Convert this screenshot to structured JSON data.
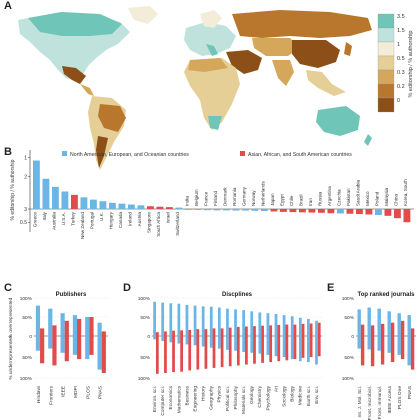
{
  "panels": {
    "a": {
      "letter": "A"
    },
    "b": {
      "letter": "B"
    },
    "c": {
      "letter": "C"
    },
    "d": {
      "letter": "D"
    },
    "e": {
      "letter": "E"
    }
  },
  "map_legend": {
    "title": "% editorship / % authorship",
    "ticks": [
      "3.5",
      "1.5",
      "1",
      "0.5",
      "0.3",
      "0.2",
      "0"
    ],
    "colors": [
      "#6fc5b8",
      "#bfe3dc",
      "#f3ecd8",
      "#e6cf96",
      "#d5a75a",
      "#b8772c",
      "#8b4f17"
    ]
  },
  "colors": {
    "blue": "#6cb6e6",
    "red": "#e24b4b",
    "ocean": "#ffffff"
  },
  "legend_b": {
    "blue": "North American, European, and Oceanian countries",
    "red": "Asian, African, and South American countries"
  },
  "axis_labels": {
    "b_y": "% editorship / % authorship",
    "cde_y_over": "% overrepresented",
    "cde_y_under": "% underrepresented"
  },
  "chart_data": [
    {
      "panel": "B",
      "type": "bar",
      "title": "",
      "ylabel": "% editorship / % authorship",
      "yscale": "log",
      "ylim": [
        0.3,
        3.5
      ],
      "ticks": [
        "1",
        "2",
        "3",
        "0.5"
      ],
      "categories": [
        "Greece",
        "Italy",
        "Australia",
        "U.S.A.",
        "Turkey",
        "New Zealand",
        "Portugal",
        "U.K.",
        "Hungary",
        "Canada",
        "Ireland",
        "Austria",
        "Singapore",
        "South Africa",
        "Israel",
        "Switzerland",
        "India",
        "Belgium",
        "France",
        "Finland",
        "Denmark",
        "Romania",
        "Germany",
        "Norway",
        "Netherlands",
        "Japan",
        "Egypt",
        "Chile",
        "Brazil",
        "Iran",
        "Russia",
        "Argentina",
        "Czechia",
        "Pakistan",
        "Saudi Arabia",
        "Mexico",
        "Poland",
        "Malaysia",
        "China",
        "Korea, South"
      ],
      "values": [
        2.8,
        1.9,
        1.6,
        1.45,
        1.35,
        1.28,
        1.22,
        1.18,
        1.14,
        1.12,
        1.1,
        1.08,
        1.06,
        1.05,
        1.04,
        1.03,
        0.97,
        0.95,
        0.94,
        0.93,
        0.93,
        0.92,
        0.92,
        0.91,
        0.9,
        0.88,
        0.86,
        0.85,
        0.84,
        0.83,
        0.82,
        0.8,
        0.79,
        0.78,
        0.77,
        0.75,
        0.73,
        0.7,
        0.62,
        0.5
      ],
      "groups": [
        "blue",
        "blue",
        "blue",
        "blue",
        "red",
        "blue",
        "blue",
        "blue",
        "blue",
        "blue",
        "blue",
        "blue",
        "red",
        "red",
        "red",
        "blue",
        "red",
        "blue",
        "blue",
        "blue",
        "blue",
        "blue",
        "blue",
        "blue",
        "blue",
        "red",
        "red",
        "red",
        "red",
        "red",
        "red",
        "red",
        "blue",
        "red",
        "red",
        "red",
        "blue",
        "red",
        "red",
        "red"
      ]
    },
    {
      "panel": "C",
      "type": "bar",
      "title": "Publishers",
      "categories": [
        "Hindawi",
        "Frontiers",
        "IEEE",
        "MDPI",
        "PLOS",
        "PNAS"
      ],
      "series": [
        {
          "name": "North American, European, and Oceanian countries",
          "values": [
            {
              "over": 80,
              "under": 35
            },
            {
              "over": 72,
              "under": 30
            },
            {
              "over": 60,
              "under": 40
            },
            {
              "over": 55,
              "under": 45
            },
            {
              "over": 50,
              "under": 55
            },
            {
              "over": 35,
              "under": 80
            }
          ]
        },
        {
          "name": "Asian, African, and South American countries",
          "values": [
            {
              "over": 20,
              "under": 65
            },
            {
              "over": 28,
              "under": 70
            },
            {
              "over": 40,
              "under": 60
            },
            {
              "over": 45,
              "under": 55
            },
            {
              "over": 50,
              "under": 45
            },
            {
              "over": 12,
              "under": 88
            }
          ]
        }
      ],
      "ylim": [
        -100,
        100
      ],
      "ticks": [
        "100%",
        "50%",
        "0",
        "50%",
        "100%"
      ]
    },
    {
      "panel": "D",
      "type": "bar",
      "title": "Discplines",
      "categories": [
        "Environ. sci.",
        "Computer sci.",
        "Economics",
        "Mathematics",
        "Business",
        "Engineering",
        "History",
        "Geography",
        "Physics",
        "Political sci.",
        "Philosophy",
        "Materials sci.",
        "Geology",
        "Chemistry",
        "Psychology",
        "Art",
        "Sociology",
        "Biology",
        "Medicine",
        "Earth sci.",
        "Env. sci."
      ],
      "series": [
        {
          "name": "North American, European, and Oceanian countries",
          "values": [
            {
              "over": 90,
              "under": 8
            },
            {
              "over": 88,
              "under": 12
            },
            {
              "over": 86,
              "under": 15
            },
            {
              "over": 85,
              "under": 18
            },
            {
              "over": 82,
              "under": 20
            },
            {
              "over": 80,
              "under": 22
            },
            {
              "over": 78,
              "under": 25
            },
            {
              "over": 77,
              "under": 28
            },
            {
              "over": 75,
              "under": 30
            },
            {
              "over": 72,
              "under": 33
            },
            {
              "over": 70,
              "under": 35
            },
            {
              "over": 68,
              "under": 38
            },
            {
              "over": 65,
              "under": 40
            },
            {
              "over": 62,
              "under": 42
            },
            {
              "over": 60,
              "under": 45
            },
            {
              "over": 58,
              "under": 48
            },
            {
              "over": 55,
              "under": 50
            },
            {
              "over": 52,
              "under": 55
            },
            {
              "over": 48,
              "under": 60
            },
            {
              "over": 45,
              "under": 62
            },
            {
              "over": 40,
              "under": 68
            }
          ]
        },
        {
          "name": "Asian, African, and South American countries",
          "values": [
            {
              "over": 10,
              "under": 90
            },
            {
              "over": 12,
              "under": 88
            },
            {
              "over": 14,
              "under": 86
            },
            {
              "over": 15,
              "under": 85
            },
            {
              "over": 16,
              "under": 82
            },
            {
              "over": 18,
              "under": 80
            },
            {
              "over": 18,
              "under": 78
            },
            {
              "over": 20,
              "under": 76
            },
            {
              "over": 20,
              "under": 74
            },
            {
              "over": 22,
              "under": 72
            },
            {
              "over": 24,
              "under": 70
            },
            {
              "over": 25,
              "under": 68
            },
            {
              "over": 26,
              "under": 66
            },
            {
              "over": 27,
              "under": 64
            },
            {
              "over": 28,
              "under": 62
            },
            {
              "over": 29,
              "under": 60
            },
            {
              "over": 30,
              "under": 58
            },
            {
              "over": 30,
              "under": 55
            },
            {
              "over": 32,
              "under": 52
            },
            {
              "over": 33,
              "under": 50
            },
            {
              "over": 35,
              "under": 48
            }
          ]
        }
      ],
      "ylim": [
        -100,
        100
      ],
      "ticks": [
        "100%",
        "50%",
        "0",
        "50%",
        "100%"
      ]
    },
    {
      "panel": "E",
      "type": "bar",
      "title": "Top ranked journals",
      "categories": [
        "Int. J. Mol. Sci.",
        "Front. microbiol.",
        "Front. immunol.",
        "IEEE Access",
        "PLOS One",
        "PNAS"
      ],
      "series": [
        {
          "name": "North American, European, and Oceanian countries",
          "values": [
            {
              "over": 70,
              "under": 30
            },
            {
              "over": 75,
              "under": 32
            },
            {
              "over": 72,
              "under": 35
            },
            {
              "over": 65,
              "under": 40
            },
            {
              "over": 60,
              "under": 45
            },
            {
              "over": 55,
              "under": 70
            }
          ]
        },
        {
          "name": "Asian, African, and South American countries",
          "values": [
            {
              "over": 30,
              "under": 70
            },
            {
              "over": 28,
              "under": 72
            },
            {
              "over": 32,
              "under": 68
            },
            {
              "over": 35,
              "under": 62
            },
            {
              "over": 40,
              "under": 55
            },
            {
              "over": 20,
              "under": 80
            }
          ]
        }
      ],
      "ylim": [
        -100,
        100
      ],
      "ticks": [
        "100%",
        "50%",
        "0",
        "50%",
        "100%"
      ]
    }
  ]
}
